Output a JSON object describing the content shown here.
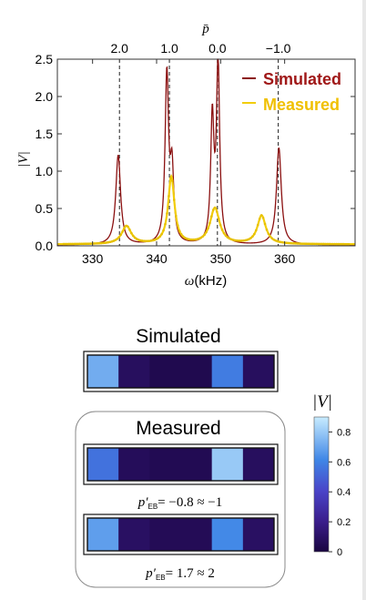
{
  "chart_data": [
    {
      "type": "line",
      "xlabel_symbol": "ω",
      "xlabel_unit": "(kHz)",
      "ylabel": "|V|",
      "top_axis_symbol": "p̄",
      "xlim": [
        324.5,
        371
      ],
      "ylim": [
        0,
        2.5
      ],
      "x_ticks": [
        330,
        340,
        350,
        360
      ],
      "y_ticks": [
        "0.0",
        "0.5",
        "1.0",
        "1.5",
        "2.0",
        "2.5"
      ],
      "top_ticks": [
        {
          "label": "2.0",
          "x": 334.2
        },
        {
          "label": "1.0",
          "x": 342.0
        },
        {
          "label": "0.0",
          "x": 349.5
        },
        {
          "label": "−1.0",
          "x": 359.0
        }
      ],
      "legend": {
        "position": "top-right",
        "entries": [
          "Simulated",
          "Measured"
        ]
      },
      "series": [
        {
          "name": "Simulated",
          "color": "#8b1010",
          "peaks": [
            {
              "x": 334.0,
              "h": 1.2,
              "w": 0.45
            },
            {
              "x": 341.6,
              "h": 2.25,
              "w": 0.33
            },
            {
              "x": 342.4,
              "h": 0.95,
              "w": 0.33
            },
            {
              "x": 348.7,
              "h": 1.65,
              "w": 0.3
            },
            {
              "x": 349.6,
              "h": 2.4,
              "w": 0.3
            },
            {
              "x": 359.1,
              "h": 1.3,
              "w": 0.45
            }
          ],
          "baseline": 0.01
        },
        {
          "name": "Measured",
          "color": "#f2cd0a",
          "peaks": [
            {
              "x": 335.3,
              "h": 0.24,
              "w": 0.9
            },
            {
              "x": 342.3,
              "h": 0.9,
              "w": 0.6
            },
            {
              "x": 349.1,
              "h": 0.48,
              "w": 0.9
            },
            {
              "x": 356.4,
              "h": 0.38,
              "w": 0.8
            }
          ],
          "baseline": 0.02
        }
      ]
    },
    {
      "type": "heatmap",
      "colorbar": {
        "label": "|V|",
        "ticks": [
          "0",
          "0.2",
          "0.4",
          "0.6",
          "0.8"
        ],
        "range": [
          0,
          0.9
        ]
      },
      "rows": [
        {
          "group": "Simulated",
          "values": [
            0.72,
            0.08,
            0.04,
            0.04,
            0.58,
            0.08
          ]
        },
        {
          "group": "Measured",
          "values": [
            0.55,
            0.07,
            0.05,
            0.05,
            0.8,
            0.08
          ],
          "caption_lhs": "p′",
          "caption_sub": "EB",
          "caption_rhs": "= −0.8 ≈ −1"
        },
        {
          "group": "Measured",
          "values": [
            0.68,
            0.09,
            0.06,
            0.06,
            0.62,
            0.09
          ],
          "caption_lhs": "p′",
          "caption_sub": "EB",
          "caption_rhs": "= 1.7 ≈ 2"
        }
      ]
    }
  ],
  "labels": {
    "simulated_title": "Simulated",
    "measured_title": "Measured"
  }
}
